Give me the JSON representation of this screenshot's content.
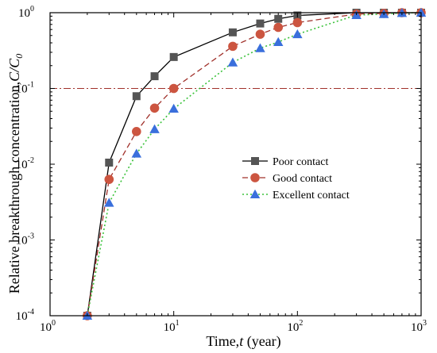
{
  "chart_data": {
    "type": "line",
    "xlabel": "Time,t (year)",
    "ylabel": "Relative breakthrough concentration,C/C0",
    "xscale": "log",
    "yscale": "log",
    "xlim": [
      1,
      1000
    ],
    "ylim": [
      0.0001,
      1
    ],
    "x_ticks": [
      {
        "base": "10",
        "exp": "0"
      },
      {
        "base": "10",
        "exp": "1"
      },
      {
        "base": "10",
        "exp": "2"
      },
      {
        "base": "10",
        "exp": "3"
      }
    ],
    "y_ticks": [
      {
        "base": "10",
        "exp": "-4"
      },
      {
        "base": "10",
        "exp": "-3"
      },
      {
        "base": "10",
        "exp": "-2"
      },
      {
        "base": "10",
        "exp": "-1"
      },
      {
        "base": "10",
        "exp": "0"
      }
    ],
    "reference_line": {
      "y": 0.1,
      "color": "#a0302a",
      "style": "dash-dot"
    },
    "legend_position": "center-right",
    "series": [
      {
        "name": "Poor contact",
        "color": "#000000",
        "marker_color": "#555555",
        "marker": "square",
        "line": "solid",
        "x": [
          2,
          3,
          5,
          7,
          10,
          30,
          50,
          70,
          100,
          300,
          500,
          700,
          1000
        ],
        "y": [
          0.0001,
          0.0105,
          0.079,
          0.145,
          0.26,
          0.55,
          0.72,
          0.83,
          0.92,
          1.0,
          1.0,
          1.0,
          1.0
        ]
      },
      {
        "name": "Good contact",
        "color": "#a0302a",
        "marker_color": "#cc5540",
        "marker": "circle",
        "line": "dashed",
        "x": [
          2,
          3,
          5,
          7,
          10,
          30,
          50,
          70,
          100,
          300,
          500,
          700,
          1000
        ],
        "y": [
          0.0001,
          0.0063,
          0.027,
          0.055,
          0.1,
          0.36,
          0.52,
          0.64,
          0.74,
          0.96,
          0.98,
          1.0,
          1.0
        ]
      },
      {
        "name": "Excellent contact",
        "color": "#3ac23a",
        "marker_color": "#3a6fdc",
        "marker": "triangle",
        "line": "dotted",
        "x": [
          2,
          3,
          5,
          7,
          10,
          30,
          50,
          70,
          100,
          300,
          500,
          700,
          1000
        ],
        "y": [
          0.0001,
          0.0031,
          0.0138,
          0.029,
          0.054,
          0.22,
          0.34,
          0.41,
          0.52,
          0.93,
          0.96,
          0.99,
          1.0
        ]
      }
    ]
  }
}
